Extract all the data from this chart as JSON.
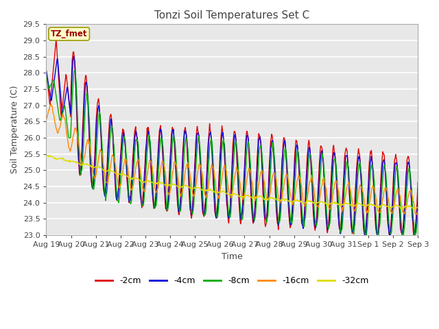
{
  "title": "Tonzi Soil Temperatures Set C",
  "xlabel": "Time",
  "ylabel": "Soil Temperature (C)",
  "ylim": [
    23.0,
    29.5
  ],
  "yticks": [
    23.0,
    23.5,
    24.0,
    24.5,
    25.0,
    25.5,
    26.0,
    26.5,
    27.0,
    27.5,
    28.0,
    28.5,
    29.0,
    29.5
  ],
  "fig_bg_color": "#ffffff",
  "plot_bg_color": "#e8e8e8",
  "grid_color": "#ffffff",
  "annotation_label": "TZ_fmet",
  "annotation_bg": "#ffffcc",
  "annotation_border": "#999900",
  "annotation_text_color": "#990000",
  "series": [
    {
      "label": "-2cm",
      "color": "#dd0000"
    },
    {
      "label": "-4cm",
      "color": "#0000dd"
    },
    {
      "label": "-8cm",
      "color": "#00aa00"
    },
    {
      "label": "-16cm",
      "color": "#ff8800"
    },
    {
      "label": "-32cm",
      "color": "#dddd00"
    }
  ],
  "x_tick_labels": [
    "Aug 19",
    "Aug 20",
    "Aug 21",
    "Aug 22",
    "Aug 23",
    "Aug 24",
    "Aug 25",
    "Aug 26",
    "Aug 27",
    "Aug 28",
    "Aug 29",
    "Aug 30",
    "Aug 31",
    "Sep 1",
    "Sep 2",
    "Sep 3"
  ],
  "n_days": 15,
  "n_points": 720
}
